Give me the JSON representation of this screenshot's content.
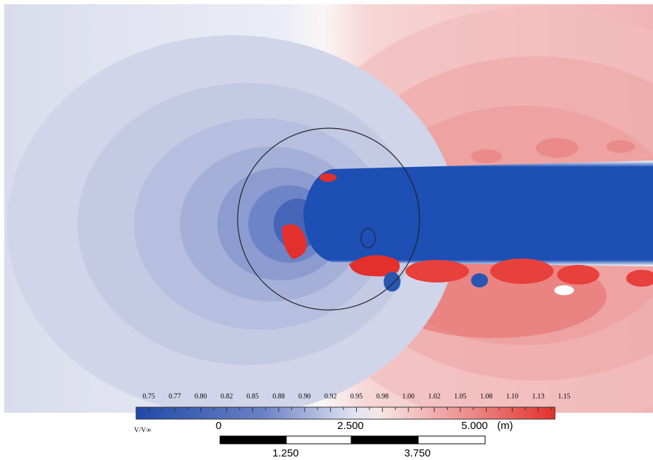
{
  "colorbar": {
    "variable": "V/V∞",
    "ticks": [
      "0.75",
      "0.77",
      "0.80",
      "0.82",
      "0.85",
      "0.88",
      "0.90",
      "0.92",
      "0.95",
      "0.98",
      "1.00",
      "1.02",
      "1.05",
      "1.08",
      "1.10",
      "1.13",
      "1.15"
    ]
  },
  "scale_bar": {
    "top_labels": [
      "0",
      "2.500",
      "5.000"
    ],
    "unit": "(m)",
    "bottom_labels": [
      "1.250",
      "3.750"
    ]
  }
}
